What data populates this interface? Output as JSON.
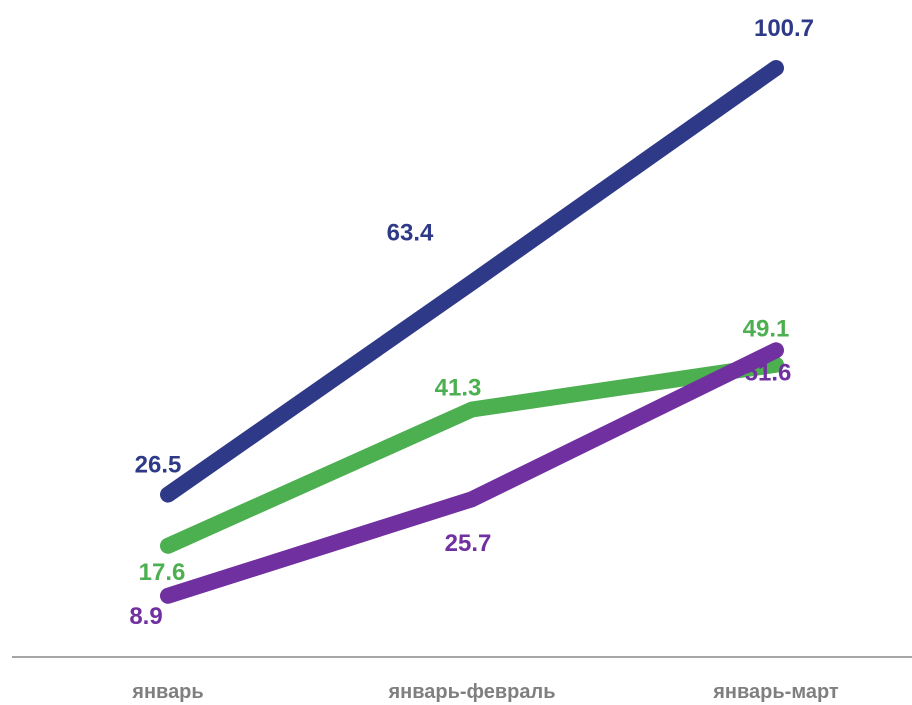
{
  "chart_data": {
    "type": "line",
    "categories": [
      "январь",
      "январь-февраль",
      "январь-март"
    ],
    "series": [
      {
        "values": [
          26.5,
          63.4,
          100.7
        ],
        "color": "#2e3a87"
      },
      {
        "values": [
          17.6,
          41.3,
          49.1
        ],
        "color": "#4caf50"
      },
      {
        "values": [
          8.9,
          25.7,
          51.6
        ],
        "color": "#7030a0"
      }
    ],
    "title": "",
    "xlabel": "",
    "ylabel": "",
    "ylim": [
      0,
      110
    ],
    "grid": false,
    "legend": "none",
    "axis_color": "#a6a6a6",
    "tick_color": "#7f7f7f"
  }
}
